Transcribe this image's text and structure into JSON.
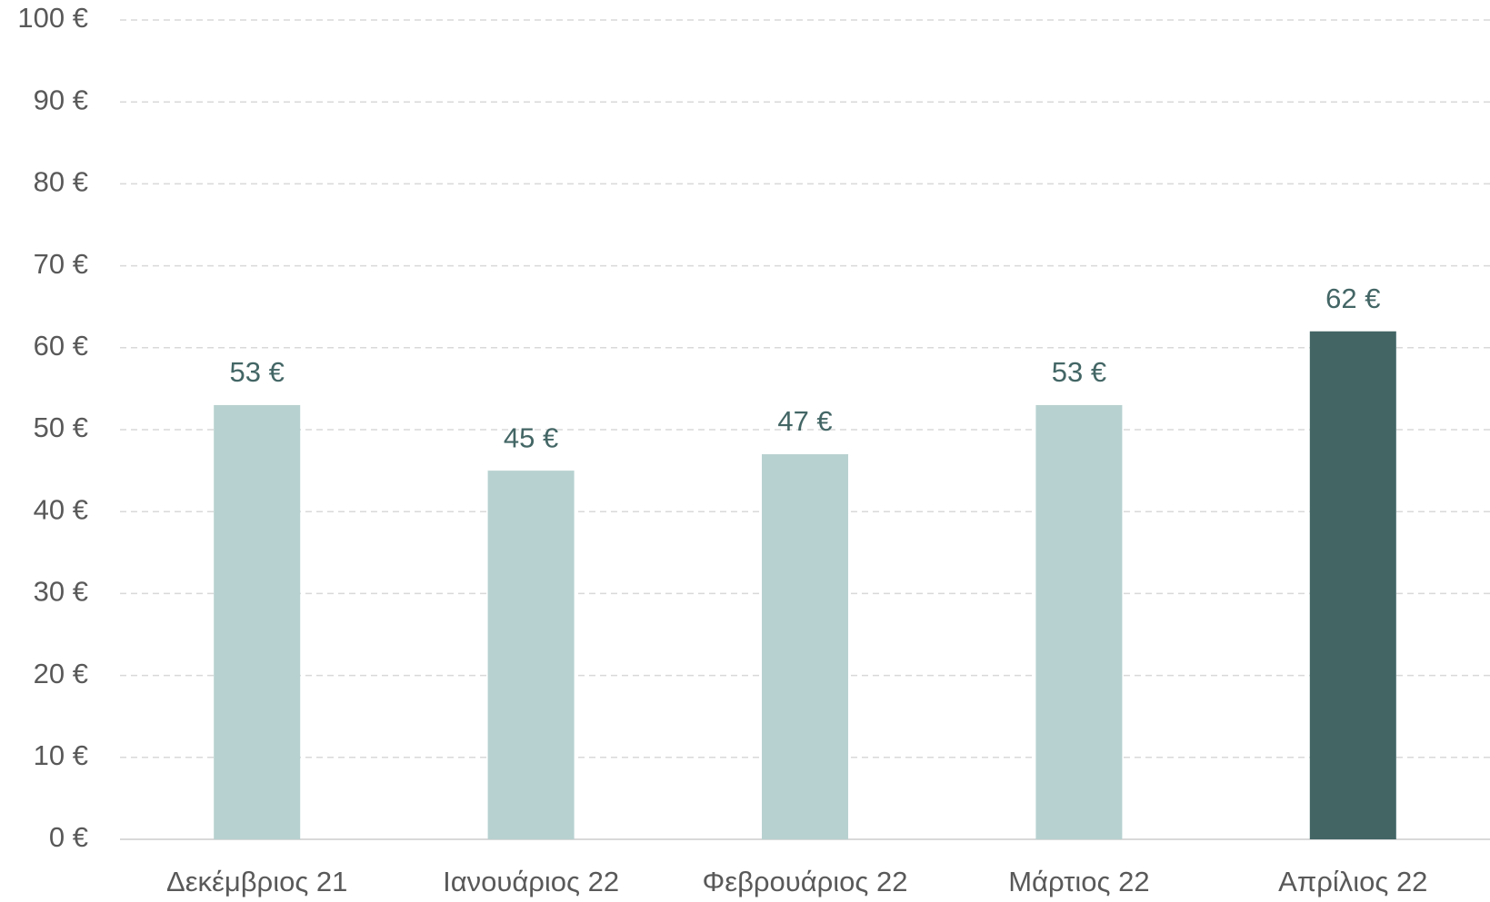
{
  "chart_data": {
    "type": "bar",
    "categories": [
      "Δεκέμβριος 21",
      "Ιανουάριος 22",
      "Φεβρουάριος 22",
      "Μάρτιος 22",
      "Απρίλιος 22"
    ],
    "values": [
      53,
      45,
      47,
      53,
      62
    ],
    "value_labels": [
      "53 €",
      "45 €",
      "47 €",
      "53 €",
      "62 €"
    ],
    "colors": [
      "#b7d1d0",
      "#b7d1d0",
      "#b7d1d0",
      "#b7d1d0",
      "#436665"
    ],
    "ylim": [
      0,
      100
    ],
    "yticks": [
      {
        "value": 0,
        "label": "0 €"
      },
      {
        "value": 10,
        "label": "10 €"
      },
      {
        "value": 20,
        "label": "20 €"
      },
      {
        "value": 30,
        "label": "30 €"
      },
      {
        "value": 40,
        "label": "40 €"
      },
      {
        "value": 50,
        "label": "50 €"
      },
      {
        "value": 60,
        "label": "60 €"
      },
      {
        "value": 70,
        "label": "70 €"
      },
      {
        "value": 80,
        "label": "80 €"
      },
      {
        "value": 90,
        "label": "90 €"
      },
      {
        "value": 100,
        "label": "100 €"
      }
    ],
    "grid": true
  }
}
